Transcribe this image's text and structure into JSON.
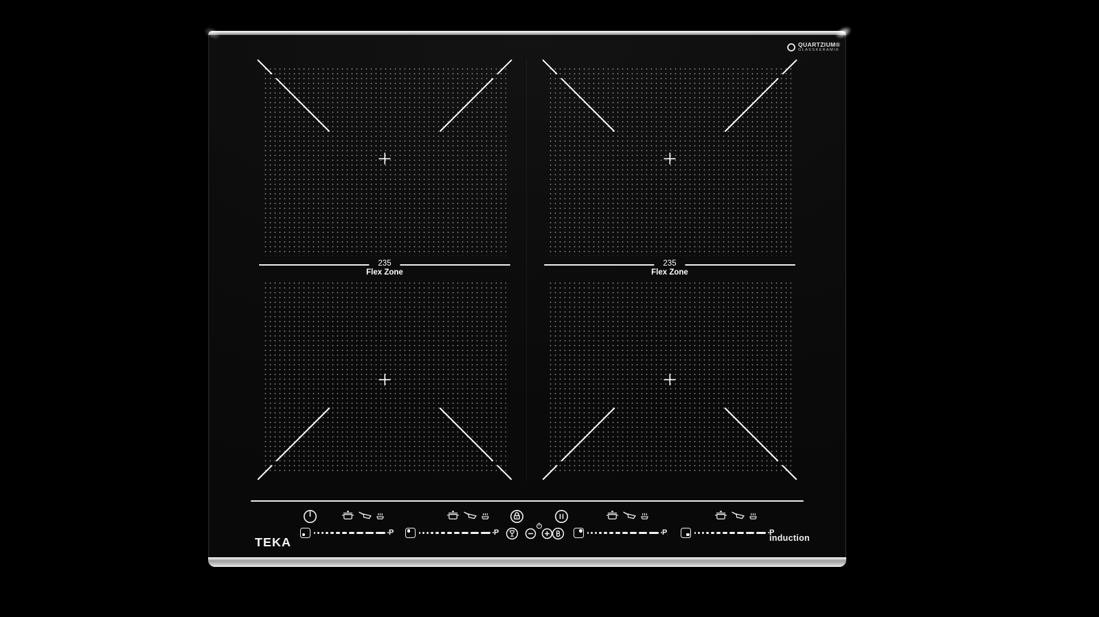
{
  "branding": {
    "logo_text": "TEKA",
    "product_type_label": "induction",
    "badge": {
      "title": "QUARTZIUM®",
      "subtitle": "GLASSKERAMIK"
    }
  },
  "zones": {
    "left": {
      "size_label": "235",
      "name_label": "Flex Zone"
    },
    "right": {
      "size_label": "235",
      "name_label": "Flex Zone"
    }
  },
  "control_panel": {
    "sliders": [
      {
        "zone": "front-left",
        "boost_label": "P"
      },
      {
        "zone": "back-left",
        "boost_label": "P"
      },
      {
        "zone": "back-right",
        "boost_label": "P"
      },
      {
        "zone": "front-right",
        "boost_label": "P"
      }
    ],
    "icons": {
      "power": "power-icon",
      "lock": "lock-icon",
      "pause": "pause-icon",
      "goblet": "goblet-icon",
      "minus": "minus-icon",
      "plus": "plus-icon",
      "small_clock": "clock-small-icon",
      "timer": "timer-b-icon",
      "cookware": [
        "pot-icon",
        "pan-icon",
        "steam-icon"
      ],
      "zone_indicator": "zone-position-icon"
    }
  },
  "colors": {
    "background": "#000000",
    "glass": "#0b0b0b",
    "marks": "#f5f5f5",
    "metal_edge": "#d9d9d9"
  }
}
